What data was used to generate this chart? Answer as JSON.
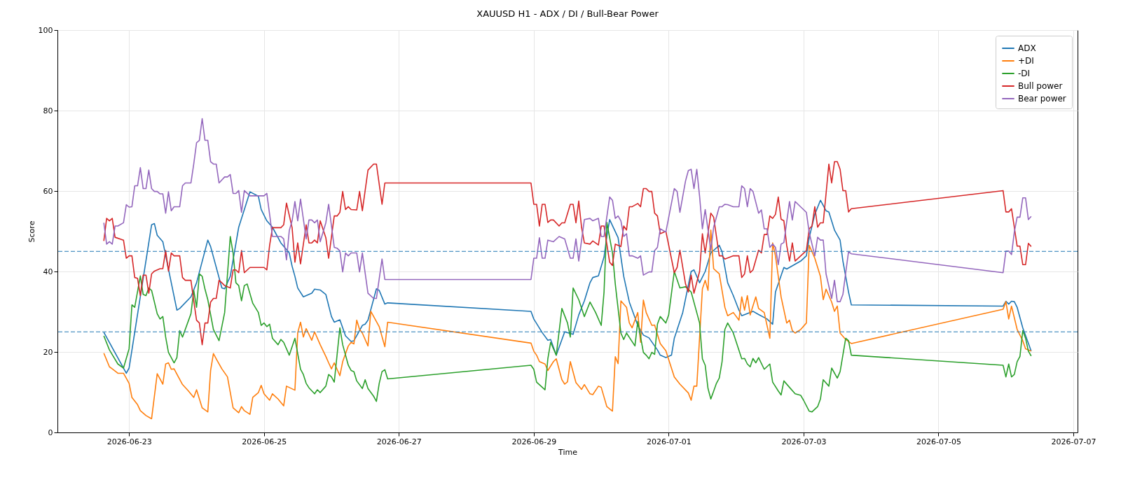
{
  "chart_data": {
    "type": "line",
    "title": "XAUUSD H1 - ADX / DI / Bull-Bear Power",
    "xlabel": "Time",
    "ylabel": "Score",
    "xlim": [
      "2026-06-21T22:30",
      "2026-07-07T01:30"
    ],
    "xticks": [
      "2026-06-23",
      "2026-06-25",
      "2026-06-27",
      "2026-06-29",
      "2026-07-01",
      "2026-07-03",
      "2026-07-05",
      "2026-07-07"
    ],
    "ylim": [
      0,
      100
    ],
    "yticks": [
      0,
      20,
      40,
      60,
      80,
      100
    ],
    "grid": true,
    "legend": "top right",
    "line_style": "solid",
    "ref_lines": [
      {
        "axis": "y",
        "value": 45,
        "color": "#1f77b4",
        "line_style": "dashed"
      },
      {
        "axis": "y",
        "value": 25,
        "color": "#1f77b4",
        "line_style": "dashed"
      }
    ],
    "series": [
      {
        "name": "ADX",
        "color": "#1f77b4",
        "x": [
          "2026-06-22T15:00",
          "2026-06-22T23:00",
          "2026-06-23T00:00",
          "2026-06-23T08:00",
          "2026-06-23T09:00",
          "2026-06-23T10:00",
          "2026-06-23T12:00",
          "2026-06-23T17:00",
          "2026-06-23T18:00",
          "2026-06-23T22:00",
          "2026-06-24T00:00",
          "2026-06-24T04:00",
          "2026-06-24T05:00",
          "2026-06-24T09:00",
          "2026-06-24T10:00",
          "2026-06-24T12:00",
          "2026-06-24T15:00",
          "2026-06-24T19:00",
          "2026-06-24T22:00",
          "2026-06-24T23:00",
          "2026-06-25T01:00",
          "2026-06-25T03:00",
          "2026-06-25T06:00",
          "2026-06-25T09:00",
          "2026-06-25T10:00",
          "2026-06-25T11:00",
          "2026-06-25T12:00",
          "2026-06-25T14:00",
          "2026-06-25T17:00",
          "2026-06-25T18:00",
          "2026-06-25T20:00",
          "2026-06-25T22:00",
          "2026-06-26T00:00",
          "2026-06-26T01:00",
          "2026-06-26T03:00",
          "2026-06-26T05:00",
          "2026-06-26T07:00",
          "2026-06-26T08:00",
          "2026-06-26T11:00",
          "2026-06-26T12:00",
          "2026-06-26T13:00",
          "2026-06-26T16:00",
          "2026-06-26T17:00",
          "2026-06-26T19:00",
          "2026-06-26T20:00",
          "2026-06-28T23:00",
          "2026-06-29T00:00",
          "2026-06-29T03:00",
          "2026-06-29T05:00",
          "2026-06-29T06:00",
          "2026-06-29T08:00",
          "2026-06-29T11:00",
          "2026-06-29T14:00",
          "2026-06-29T16:00",
          "2026-06-29T18:00",
          "2026-06-29T20:00",
          "2026-06-29T21:00",
          "2026-06-29T23:00",
          "2026-06-30T01:00",
          "2026-06-30T02:00",
          "2026-06-30T03:00",
          "2026-06-30T06:00",
          "2026-06-30T08:00",
          "2026-06-30T10:00",
          "2026-06-30T13:00",
          "2026-06-30T15:00",
          "2026-06-30T17:00",
          "2026-06-30T20:00",
          "2026-06-30T21:00",
          "2026-06-30T23:00",
          "2026-07-01T01:00",
          "2026-07-01T02:00",
          "2026-07-01T05:00",
          "2026-07-01T08:00",
          "2026-07-01T09:00",
          "2026-07-01T11:00",
          "2026-07-01T13:00",
          "2026-07-01T15:00",
          "2026-07-01T18:00",
          "2026-07-01T19:00",
          "2026-07-01T21:00",
          "2026-07-01T23:00",
          "2026-07-02T01:00",
          "2026-07-02T02:00",
          "2026-07-02T06:00",
          "2026-07-02T08:00",
          "2026-07-02T11:00",
          "2026-07-02T13:00",
          "2026-07-02T14:00",
          "2026-07-02T17:00",
          "2026-07-02T18:00",
          "2026-07-02T23:00",
          "2026-07-03T01:00",
          "2026-07-03T02:00",
          "2026-07-03T04:00",
          "2026-07-03T06:00",
          "2026-07-03T08:00",
          "2026-07-03T09:00",
          "2026-07-03T11:00",
          "2026-07-03T13:00",
          "2026-07-03T14:00",
          "2026-07-03T16:00",
          "2026-07-03T17:00",
          "2026-07-05T23:00",
          "2026-07-06T00:00",
          "2026-07-06T01:00",
          "2026-07-06T02:00",
          "2026-07-06T03:00",
          "2026-07-06T04:00",
          "2026-07-06T06:00",
          "2026-07-06T09:00"
        ],
        "values": [
          24.9,
          14.7,
          16,
          51.6,
          51.9,
          49,
          47.4,
          30.4,
          30.8,
          33.7,
          37.2,
          47.8,
          46.2,
          35.9,
          35.7,
          38.8,
          51,
          59.8,
          58.7,
          55.4,
          52.6,
          51,
          47.1,
          44.6,
          41.3,
          38.8,
          35.9,
          33.7,
          34.6,
          35.6,
          35.4,
          34.3,
          28.8,
          27.4,
          28,
          24,
          22.6,
          22.8,
          26.6,
          26.9,
          27.9,
          35.7,
          35.3,
          31.9,
          32.2,
          30.1,
          28.2,
          24.8,
          22.9,
          23.1,
          19.2,
          25,
          24.4,
          29.2,
          32.7,
          37.2,
          38.5,
          38.9,
          43.6,
          48.7,
          52.9,
          48.4,
          38.8,
          32.4,
          26.6,
          24.2,
          23.5,
          20.5,
          19.2,
          18.6,
          19.2,
          23.4,
          29.8,
          40,
          40.4,
          37.2,
          40,
          44.6,
          46.5,
          44.9,
          37.2,
          34,
          30.4,
          29,
          30.1,
          29.3,
          28.2,
          26.9,
          34.9,
          41,
          40.6,
          42.6,
          43.9,
          48.4,
          54.2,
          57.7,
          55.1,
          54.8,
          50.3,
          47.8,
          42.6,
          34.9,
          31.7,
          31.4,
          32.6,
          31.9,
          32.6,
          32.5,
          31.1,
          26,
          20.2
        ]
      },
      {
        "name": "+DI",
        "color": "#ff7f0e",
        "x": [
          "2026-06-22T15:00",
          "2026-06-22T17:00",
          "2026-06-22T18:00",
          "2026-06-22T20:00",
          "2026-06-22T22:00",
          "2026-06-23T00:00",
          "2026-06-23T01:00",
          "2026-06-23T03:00",
          "2026-06-23T04:00",
          "2026-06-23T06:00",
          "2026-06-23T08:00",
          "2026-06-23T10:00",
          "2026-06-23T12:00",
          "2026-06-23T13:00",
          "2026-06-23T14:00",
          "2026-06-23T15:00",
          "2026-06-23T16:00",
          "2026-06-23T19:00",
          "2026-06-23T21:00",
          "2026-06-23T23:00",
          "2026-06-24T00:00",
          "2026-06-24T02:00",
          "2026-06-24T04:00",
          "2026-06-24T05:00",
          "2026-06-24T06:00",
          "2026-06-24T07:00",
          "2026-06-24T09:00",
          "2026-06-24T11:00",
          "2026-06-24T13:00",
          "2026-06-24T15:00",
          "2026-06-24T16:00",
          "2026-06-24T17:00",
          "2026-06-24T19:00",
          "2026-06-24T20:00",
          "2026-06-24T22:00",
          "2026-06-24T23:00",
          "2026-06-25T00:00",
          "2026-06-25T02:00",
          "2026-06-25T03:00",
          "2026-06-25T05:00",
          "2026-06-25T07:00",
          "2026-06-25T08:00",
          "2026-06-25T11:00",
          "2026-06-25T12:00",
          "2026-06-25T13:00",
          "2026-06-25T14:00",
          "2026-06-25T15:00",
          "2026-06-25T17:00",
          "2026-06-25T18:00",
          "2026-06-25T20:00",
          "2026-06-25T22:00",
          "2026-06-25T23:00",
          "2026-06-26T00:00",
          "2026-06-26T01:00",
          "2026-06-26T02:00",
          "2026-06-26T03:00",
          "2026-06-26T04:00",
          "2026-06-26T06:00",
          "2026-06-26T07:00",
          "2026-06-26T08:00",
          "2026-06-26T09:00",
          "2026-06-26T10:00",
          "2026-06-26T11:00",
          "2026-06-26T13:00",
          "2026-06-26T14:00",
          "2026-06-26T17:00",
          "2026-06-26T19:00",
          "2026-06-26T20:00",
          "2026-06-28T23:00",
          "2026-06-29T00:00",
          "2026-06-29T01:00",
          "2026-06-29T02:00",
          "2026-06-29T04:00",
          "2026-06-29T05:00",
          "2026-06-29T07:00",
          "2026-06-29T08:00",
          "2026-06-29T10:00",
          "2026-06-29T11:00",
          "2026-06-29T12:00",
          "2026-06-29T13:00",
          "2026-06-29T15:00",
          "2026-06-29T17:00",
          "2026-06-29T18:00",
          "2026-06-29T20:00",
          "2026-06-29T21:00",
          "2026-06-29T23:00",
          "2026-06-30T00:00",
          "2026-06-30T02:00",
          "2026-06-30T04:00",
          "2026-06-30T05:00",
          "2026-06-30T06:00",
          "2026-06-30T07:00",
          "2026-06-30T09:00",
          "2026-06-30T10:00",
          "2026-06-30T11:00",
          "2026-06-30T13:00",
          "2026-06-30T14:00",
          "2026-06-30T15:00",
          "2026-06-30T16:00",
          "2026-06-30T18:00",
          "2026-06-30T19:00",
          "2026-06-30T21:00",
          "2026-06-30T23:00",
          "2026-07-01T02:00",
          "2026-07-01T04:00",
          "2026-07-01T07:00",
          "2026-07-01T08:00",
          "2026-07-01T09:00",
          "2026-07-01T10:00",
          "2026-07-01T12:00",
          "2026-07-01T13:00",
          "2026-07-01T14:00",
          "2026-07-01T15:00",
          "2026-07-01T16:00",
          "2026-07-01T18:00",
          "2026-07-01T20:00",
          "2026-07-01T21:00",
          "2026-07-01T23:00",
          "2026-07-02T01:00",
          "2026-07-02T02:00",
          "2026-07-02T03:00",
          "2026-07-02T04:00",
          "2026-07-02T05:00",
          "2026-07-02T07:00",
          "2026-07-02T08:00",
          "2026-07-02T10:00",
          "2026-07-02T11:00",
          "2026-07-02T12:00",
          "2026-07-02T13:00",
          "2026-07-02T14:00",
          "2026-07-02T16:00",
          "2026-07-02T18:00",
          "2026-07-02T19:00",
          "2026-07-02T20:00",
          "2026-07-02T21:00",
          "2026-07-02T23:00",
          "2026-07-03T01:00",
          "2026-07-03T02:00",
          "2026-07-03T04:00",
          "2026-07-03T06:00",
          "2026-07-03T07:00",
          "2026-07-03T08:00",
          "2026-07-03T10:00",
          "2026-07-03T11:00",
          "2026-07-03T12:00",
          "2026-07-03T13:00",
          "2026-07-03T15:00",
          "2026-07-03T17:00",
          "2026-07-05T23:00",
          "2026-07-06T00:00",
          "2026-07-06T01:00",
          "2026-07-06T02:00",
          "2026-07-06T04:00",
          "2026-07-06T06:00",
          "2026-07-06T07:00",
          "2026-07-06T09:00"
        ],
        "values": [
          19.7,
          16.3,
          15.8,
          14.7,
          14.7,
          12.2,
          8.7,
          6.9,
          5.4,
          4.2,
          3.4,
          14.6,
          12,
          17,
          17.3,
          15.7,
          15.8,
          11.9,
          10.4,
          8.7,
          10.6,
          6.1,
          5.1,
          15.4,
          19.6,
          18.3,
          15.8,
          13.8,
          6.1,
          4.9,
          6.4,
          5.4,
          4.5,
          8.7,
          9.9,
          11.7,
          9.6,
          8,
          9.6,
          8.3,
          6.6,
          11.5,
          10.5,
          24.8,
          27.4,
          23.7,
          25.8,
          22.9,
          25,
          21.8,
          18.9,
          17.3,
          15.8,
          17.3,
          15.7,
          14.1,
          17.6,
          21.5,
          22.4,
          22,
          27.9,
          25.6,
          24.7,
          21.5,
          30.1,
          26.3,
          21.3,
          27.4,
          22.2,
          20.2,
          19.2,
          17.6,
          17,
          15.4,
          17.6,
          18.3,
          13.1,
          12,
          12.6,
          17.6,
          12.4,
          10.7,
          11.9,
          9.6,
          9.4,
          11.5,
          11.2,
          6.4,
          5.3,
          18.8,
          17.1,
          32.7,
          31.1,
          27.2,
          26,
          29.8,
          22.4,
          32.9,
          29.8,
          26.6,
          26.7,
          22.1,
          20.3,
          13.8,
          12,
          9.8,
          8,
          11.5,
          11.5,
          35.7,
          37.8,
          35.3,
          50.3,
          40.7,
          39.4,
          31.1,
          29,
          29.8,
          27.9,
          33.7,
          30.4,
          34,
          29.2,
          33.7,
          30.8,
          29.8,
          26.6,
          23.4,
          47.1,
          43.9,
          33.7,
          27.2,
          27.9,
          25.3,
          24.7,
          25.6,
          27.2,
          46.5,
          43.3,
          38.8,
          33,
          35.6,
          32.4,
          30.1,
          31.4,
          24.7,
          23.1,
          22.1,
          30.6,
          32.5,
          28.2,
          31.4,
          25.6,
          22.8,
          20.8,
          20.2
        ]
      },
      {
        "name": "-DI",
        "color": "#2ca02c",
        "x": [
          "2026-06-22T15:00",
          "2026-06-22T17:00",
          "2026-06-22T20:00",
          "2026-06-22T22:00",
          "2026-06-23T00:00",
          "2026-06-23T01:00",
          "2026-06-23T02:00",
          "2026-06-23T04:00",
          "2026-06-23T05:00",
          "2026-06-23T06:00",
          "2026-06-23T07:00",
          "2026-06-23T08:00",
          "2026-06-23T10:00",
          "2026-06-23T11:00",
          "2026-06-23T12:00",
          "2026-06-23T13:00",
          "2026-06-23T14:00",
          "2026-06-23T16:00",
          "2026-06-23T17:00",
          "2026-06-23T18:00",
          "2026-06-23T19:00",
          "2026-06-23T22:00",
          "2026-06-23T23:00",
          "2026-06-24T00:00",
          "2026-06-24T01:00",
          "2026-06-24T02:00",
          "2026-06-24T03:00",
          "2026-06-24T04:00",
          "2026-06-24T06:00",
          "2026-06-24T08:00",
          "2026-06-24T10:00",
          "2026-06-24T12:00",
          "2026-06-24T13:00",
          "2026-06-24T14:00",
          "2026-06-24T15:00",
          "2026-06-24T16:00",
          "2026-06-24T17:00",
          "2026-06-24T18:00",
          "2026-06-24T20:00",
          "2026-06-24T22:00",
          "2026-06-24T23:00",
          "2026-06-25T00:00",
          "2026-06-25T01:00",
          "2026-06-25T02:00",
          "2026-06-25T03:00",
          "2026-06-25T05:00",
          "2026-06-25T06:00",
          "2026-06-25T07:00",
          "2026-06-25T09:00",
          "2026-06-25T11:00",
          "2026-06-25T12:00",
          "2026-06-25T13:00",
          "2026-06-25T14:00",
          "2026-06-25T15:00",
          "2026-06-25T16:00",
          "2026-06-25T18:00",
          "2026-06-25T19:00",
          "2026-06-25T20:00",
          "2026-06-25T22:00",
          "2026-06-25T23:00",
          "2026-06-26T00:00",
          "2026-06-26T01:00",
          "2026-06-26T03:00",
          "2026-06-26T04:00",
          "2026-06-26T06:00",
          "2026-06-26T07:00",
          "2026-06-26T08:00",
          "2026-06-26T09:00",
          "2026-06-26T11:00",
          "2026-06-26T12:00",
          "2026-06-26T13:00",
          "2026-06-26T15:00",
          "2026-06-26T16:00",
          "2026-06-26T17:00",
          "2026-06-26T18:00",
          "2026-06-26T19:00",
          "2026-06-26T20:00",
          "2026-06-28T23:00",
          "2026-06-29T00:00",
          "2026-06-29T01:00",
          "2026-06-29T04:00",
          "2026-06-29T05:00",
          "2026-06-29T06:00",
          "2026-06-29T08:00",
          "2026-06-29T10:00",
          "2026-06-29T12:00",
          "2026-06-29T13:00",
          "2026-06-29T14:00",
          "2026-06-29T16:00",
          "2026-06-29T18:00",
          "2026-06-29T20:00",
          "2026-06-29T22:00",
          "2026-06-30T00:00",
          "2026-06-30T01:00",
          "2026-06-30T02:00",
          "2026-06-30T04:00",
          "2026-06-30T05:00",
          "2026-06-30T07:00",
          "2026-06-30T08:00",
          "2026-06-30T09:00",
          "2026-06-30T12:00",
          "2026-06-30T13:00",
          "2026-06-30T15:00",
          "2026-06-30T16:00",
          "2026-06-30T17:00",
          "2026-06-30T18:00",
          "2026-06-30T19:00",
          "2026-06-30T20:00",
          "2026-06-30T21:00",
          "2026-06-30T23:00",
          "2026-07-01T00:00",
          "2026-07-01T02:00",
          "2026-07-01T04:00",
          "2026-07-01T06:00",
          "2026-07-01T08:00",
          "2026-07-01T11:00",
          "2026-07-01T12:00",
          "2026-07-01T13:00",
          "2026-07-01T14:00",
          "2026-07-01T15:00",
          "2026-07-01T17:00",
          "2026-07-01T18:00",
          "2026-07-01T19:00",
          "2026-07-01T20:00",
          "2026-07-01T21:00",
          "2026-07-01T23:00",
          "2026-07-02T02:00",
          "2026-07-02T03:00",
          "2026-07-02T04:00",
          "2026-07-02T05:00",
          "2026-07-02T06:00",
          "2026-07-02T07:00",
          "2026-07-02T08:00",
          "2026-07-02T10:00",
          "2026-07-02T12:00",
          "2026-07-02T13:00",
          "2026-07-02T15:00",
          "2026-07-02T16:00",
          "2026-07-02T17:00",
          "2026-07-02T19:00",
          "2026-07-02T21:00",
          "2026-07-02T23:00",
          "2026-07-03T00:00",
          "2026-07-03T02:00",
          "2026-07-03T03:00",
          "2026-07-03T05:00",
          "2026-07-03T06:00",
          "2026-07-03T07:00",
          "2026-07-03T09:00",
          "2026-07-03T10:00",
          "2026-07-03T12:00",
          "2026-07-03T13:00",
          "2026-07-03T15:00",
          "2026-07-03T16:00",
          "2026-07-03T17:00",
          "2026-07-05T23:00",
          "2026-07-06T00:00",
          "2026-07-06T01:00",
          "2026-07-06T02:00",
          "2026-07-06T03:00",
          "2026-07-06T04:00",
          "2026-07-06T05:00",
          "2026-07-06T06:00",
          "2026-07-06T07:00",
          "2026-07-06T08:00",
          "2026-07-06T09:00"
        ],
        "values": [
          24,
          20.5,
          17,
          16,
          20.8,
          31.7,
          31.1,
          38.9,
          34.3,
          34,
          35.9,
          35.3,
          29.5,
          28.2,
          28.8,
          23.7,
          19.9,
          17.3,
          18.6,
          25.3,
          23.7,
          29.5,
          35.3,
          31.1,
          39.4,
          38.8,
          35.6,
          33,
          25.6,
          22.8,
          29.8,
          48.7,
          44.6,
          37.2,
          36.5,
          32.7,
          36.5,
          36.9,
          32.1,
          29.8,
          26.6,
          27.2,
          26.3,
          26.9,
          23.4,
          21.8,
          23.1,
          22.4,
          19.2,
          23.4,
          19.6,
          15.7,
          14.4,
          12.2,
          11.1,
          9.6,
          10.6,
          9.9,
          11.5,
          14.4,
          13.8,
          12.5,
          26,
          21.8,
          16.7,
          15.4,
          15.1,
          12.8,
          10.9,
          13.1,
          10.9,
          9,
          7.7,
          12.2,
          15.1,
          15.6,
          13.3,
          16.7,
          15.7,
          12.5,
          10.6,
          18.3,
          22.4,
          19.2,
          30.8,
          27.2,
          23.7,
          35.9,
          33,
          28.8,
          32.4,
          29.8,
          26.6,
          34.9,
          52.2,
          44.6,
          36.9,
          24.7,
          23.1,
          24.7,
          21.5,
          27.6,
          19.9,
          19.2,
          18.3,
          19.9,
          19.4,
          26.9,
          28.8,
          27.2,
          29.2,
          40,
          35.9,
          36.2,
          34.9,
          27.2,
          18.3,
          16.7,
          10.9,
          8.3,
          12.2,
          13.5,
          17.6,
          25.6,
          27.2,
          24.7,
          18.3,
          18.4,
          17,
          16.3,
          18.4,
          17.3,
          18.6,
          15.7,
          17,
          12.5,
          10.3,
          9.3,
          12.8,
          11.2,
          9.6,
          9.2,
          8,
          5.3,
          5.1,
          6.4,
          8.3,
          13.1,
          11.5,
          16,
          13.5,
          15.1,
          23.4,
          22.8,
          19.2,
          16.7,
          13.8,
          17,
          13.8,
          14.4,
          17.6,
          18.9,
          25.3,
          23.4,
          20.2,
          19
        ]
      },
      {
        "name": "Bull power",
        "color": "#d62728",
        "x": [
          "2026-06-22T15:00",
          "2026-06-22T16:00",
          "2026-06-22T17:00",
          "2026-06-22T18:00",
          "2026-06-22T19:00",
          "2026-06-22T22:00",
          "2026-06-22T23:00",
          "2026-06-23T00:00",
          "2026-06-23T01:00",
          "2026-06-23T02:00",
          "2026-06-23T03:00",
          "2026-06-23T04:00",
          "2026-06-23T05:00",
          "2026-06-23T06:00",
          "2026-06-23T07:00",
          "2026-06-23T08:00",
          "2026-06-23T09:00",
          "2026-06-23T11:00",
          "2026-06-23T12:00",
          "2026-06-23T13:00",
          "2026-06-23T14:00",
          "2026-06-23T15:00",
          "2026-06-23T16:00",
          "2026-06-23T18:00",
          "2026-06-23T19:00",
          "2026-06-23T20:00",
          "2026-06-23T22:00",
          "2026-06-23T23:00",
          "2026-06-24T00:00",
          "2026-06-24T01:00",
          "2026-06-24T02:00",
          "2026-06-24T03:00",
          "2026-06-24T04:00",
          "2026-06-24T05:00",
          "2026-06-24T06:00",
          "2026-06-24T07:00",
          "2026-06-24T08:00",
          "2026-06-24T09:00",
          "2026-06-24T10:00",
          "2026-06-24T12:00",
          "2026-06-24T13:00",
          "2026-06-24T14:00",
          "2026-06-24T15:00",
          "2026-06-24T16:00",
          "2026-06-24T17:00",
          "2026-06-24T19:00",
          "2026-06-25T00:00",
          "2026-06-25T01:00",
          "2026-06-25T02:00",
          "2026-06-25T03:00",
          "2026-06-25T06:00",
          "2026-06-25T07:00",
          "2026-06-25T08:00",
          "2026-06-25T10:00",
          "2026-06-25T11:00",
          "2026-06-25T12:00",
          "2026-06-25T13:00",
          "2026-06-25T15:00",
          "2026-06-25T16:00",
          "2026-06-25T17:00",
          "2026-06-25T18:00",
          "2026-06-25T19:00",
          "2026-06-25T20:00",
          "2026-06-25T22:00",
          "2026-06-25T23:00",
          "2026-06-26T01:00",
          "2026-06-26T02:00",
          "2026-06-26T03:00",
          "2026-06-26T04:00",
          "2026-06-26T05:00",
          "2026-06-26T06:00",
          "2026-06-26T07:00",
          "2026-06-26T09:00",
          "2026-06-26T10:00",
          "2026-06-26T11:00",
          "2026-06-26T13:00",
          "2026-06-26T15:00",
          "2026-06-26T16:00",
          "2026-06-26T18:00",
          "2026-06-26T19:00",
          "2026-06-26T20:00",
          "2026-06-28T23:00",
          "2026-06-29T00:00",
          "2026-06-29T01:00",
          "2026-06-29T02:00",
          "2026-06-29T03:00",
          "2026-06-29T04:00",
          "2026-06-29T05:00",
          "2026-06-29T06:00",
          "2026-06-29T07:00",
          "2026-06-29T09:00",
          "2026-06-29T10:00",
          "2026-06-29T11:00",
          "2026-06-29T13:00",
          "2026-06-29T14:00",
          "2026-06-29T15:00",
          "2026-06-29T16:00",
          "2026-06-29T17:00",
          "2026-06-29T18:00",
          "2026-06-29T20:00",
          "2026-06-29T21:00",
          "2026-06-29T23:00",
          "2026-06-30T00:00",
          "2026-06-30T01:00",
          "2026-06-30T02:00",
          "2026-06-30T03:00",
          "2026-06-30T04:00",
          "2026-06-30T05:00",
          "2026-06-30T07:00",
          "2026-06-30T08:00",
          "2026-06-30T09:00",
          "2026-06-30T10:00",
          "2026-06-30T11:00",
          "2026-06-30T13:00",
          "2026-06-30T14:00",
          "2026-06-30T15:00",
          "2026-06-30T16:00",
          "2026-06-30T17:00",
          "2026-06-30T18:00",
          "2026-06-30T19:00",
          "2026-06-30T20:00",
          "2026-06-30T21:00",
          "2026-06-30T23:00",
          "2026-07-01T02:00",
          "2026-07-01T03:00",
          "2026-07-01T04:00",
          "2026-07-01T06:00",
          "2026-07-01T07:00",
          "2026-07-01T08:00",
          "2026-07-01T09:00",
          "2026-07-01T11:00",
          "2026-07-01T12:00",
          "2026-07-01T13:00",
          "2026-07-01T15:00",
          "2026-07-01T16:00",
          "2026-07-01T18:00",
          "2026-07-01T19:00",
          "2026-07-01T20:00",
          "2026-07-01T23:00",
          "2026-07-02T01:00",
          "2026-07-02T02:00",
          "2026-07-02T03:00",
          "2026-07-02T04:00",
          "2026-07-02T05:00",
          "2026-07-02T06:00",
          "2026-07-02T08:00",
          "2026-07-02T09:00",
          "2026-07-02T10:00",
          "2026-07-02T11:00",
          "2026-07-02T12:00",
          "2026-07-02T13:00",
          "2026-07-02T14:00",
          "2026-07-02T15:00",
          "2026-07-02T16:00",
          "2026-07-02T17:00",
          "2026-07-02T18:00",
          "2026-07-02T19:00",
          "2026-07-02T20:00",
          "2026-07-02T21:00",
          "2026-07-02T23:00",
          "2026-07-03T01:00",
          "2026-07-03T02:00",
          "2026-07-03T03:00",
          "2026-07-03T04:00",
          "2026-07-03T05:00",
          "2026-07-03T06:00",
          "2026-07-03T07:00",
          "2026-07-03T08:00",
          "2026-07-03T09:00",
          "2026-07-03T10:00",
          "2026-07-03T11:00",
          "2026-07-03T12:00",
          "2026-07-03T13:00",
          "2026-07-03T14:00",
          "2026-07-03T15:00",
          "2026-07-03T16:00",
          "2026-07-03T17:00",
          "2026-07-05T23:00",
          "2026-07-06T00:00",
          "2026-07-06T01:00",
          "2026-07-06T02:00",
          "2026-07-06T03:00",
          "2026-07-06T04:00",
          "2026-07-06T05:00",
          "2026-07-06T06:00",
          "2026-07-06T07:00",
          "2026-07-06T08:00",
          "2026-07-06T09:00"
        ],
        "values": [
          47.6,
          53.2,
          52.6,
          53.2,
          48.5,
          47.8,
          43.3,
          43.9,
          43.9,
          38.5,
          38.3,
          34,
          39.1,
          39.1,
          34.6,
          39.4,
          40.1,
          40.7,
          40.7,
          45.2,
          40.1,
          44.6,
          43.9,
          43.9,
          38.5,
          37.8,
          37.8,
          32.7,
          27.9,
          27.2,
          21.8,
          27.2,
          27.2,
          32.4,
          33.3,
          33.3,
          37.8,
          37.2,
          36.5,
          35.9,
          40.4,
          40.4,
          39.7,
          45.2,
          39.7,
          41,
          41,
          40.4,
          46.5,
          50.9,
          50.9,
          51.6,
          57,
          50.9,
          42.3,
          47.1,
          41.9,
          51.6,
          47.1,
          47.1,
          47.8,
          47.1,
          52.6,
          48.4,
          43.3,
          53.8,
          53.8,
          54.7,
          59.9,
          55.4,
          56.1,
          55.4,
          55.3,
          59.9,
          55.1,
          65.2,
          66.7,
          66.7,
          56.7,
          62,
          62,
          62,
          56.7,
          56.7,
          51.3,
          56.7,
          56.7,
          52.2,
          52.8,
          52.8,
          51.3,
          52.1,
          52.1,
          56.7,
          56.7,
          52.1,
          57.5,
          51,
          47.1,
          46.8,
          47.6,
          46.6,
          51.3,
          51.3,
          46.8,
          42.3,
          41.5,
          46.8,
          46.2,
          51.3,
          50.3,
          56.1,
          56.1,
          56.9,
          56.1,
          60.6,
          60.6,
          59.9,
          59.9,
          54.5,
          53.8,
          49.4,
          50,
          39.7,
          41,
          45.3,
          36.9,
          34.9,
          39.1,
          34.6,
          40,
          49.4,
          44.6,
          54.5,
          53.5,
          43.9,
          43.9,
          43.1,
          43.9,
          43.9,
          38.5,
          39.4,
          43.9,
          39.7,
          40.4,
          45.3,
          44.6,
          49.2,
          49.2,
          53.8,
          53.2,
          54.2,
          58.5,
          53,
          52.6,
          46.5,
          42.6,
          47.1,
          42.6,
          43.9,
          45.2,
          50.6,
          51.3,
          56.1,
          51,
          52.1,
          52.1,
          59.3,
          66.7,
          62,
          67.3,
          67.3,
          65.4,
          60.1,
          60.1,
          54.8,
          55.6,
          60.1,
          54.8,
          54.8,
          55.6,
          51,
          46.3,
          46.3,
          41.7,
          41.7,
          47,
          46.2
        ]
      },
      {
        "name": "Bear power",
        "color": "#9467bd",
        "x": [
          "2026-06-22T15:00",
          "2026-06-22T16:00",
          "2026-06-22T17:00",
          "2026-06-22T18:00",
          "2026-06-22T19:00",
          "2026-06-22T20:00",
          "2026-06-22T22:00",
          "2026-06-22T23:00",
          "2026-06-23T00:00",
          "2026-06-23T01:00",
          "2026-06-23T02:00",
          "2026-06-23T03:00",
          "2026-06-23T04:00",
          "2026-06-23T05:00",
          "2026-06-23T06:00",
          "2026-06-23T07:00",
          "2026-06-23T08:00",
          "2026-06-23T09:00",
          "2026-06-23T10:00",
          "2026-06-23T11:00",
          "2026-06-23T12:00",
          "2026-06-23T13:00",
          "2026-06-23T14:00",
          "2026-06-23T15:00",
          "2026-06-23T16:00",
          "2026-06-23T18:00",
          "2026-06-23T19:00",
          "2026-06-23T20:00",
          "2026-06-23T22:00",
          "2026-06-23T23:00",
          "2026-06-24T00:00",
          "2026-06-24T01:00",
          "2026-06-24T02:00",
          "2026-06-24T03:00",
          "2026-06-24T04:00",
          "2026-06-24T05:00",
          "2026-06-24T06:00",
          "2026-06-24T07:00",
          "2026-06-24T08:00",
          "2026-06-24T10:00",
          "2026-06-24T11:00",
          "2026-06-24T12:00",
          "2026-06-24T13:00",
          "2026-06-24T14:00",
          "2026-06-24T15:00",
          "2026-06-24T16:00",
          "2026-06-24T17:00",
          "2026-06-24T19:00",
          "2026-06-25T00:00",
          "2026-06-25T01:00",
          "2026-06-25T02:00",
          "2026-06-25T03:00",
          "2026-06-25T06:00",
          "2026-06-25T07:00",
          "2026-06-25T08:00",
          "2026-06-25T09:00",
          "2026-06-25T10:00",
          "2026-06-25T11:00",
          "2026-06-25T12:00",
          "2026-06-25T13:00",
          "2026-06-25T15:00",
          "2026-06-25T16:00",
          "2026-06-25T17:00",
          "2026-06-25T18:00",
          "2026-06-25T19:00",
          "2026-06-25T20:00",
          "2026-06-25T22:00",
          "2026-06-25T23:00",
          "2026-06-26T01:00",
          "2026-06-26T02:00",
          "2026-06-26T03:00",
          "2026-06-26T04:00",
          "2026-06-26T05:00",
          "2026-06-26T06:00",
          "2026-06-26T07:00",
          "2026-06-26T09:00",
          "2026-06-26T10:00",
          "2026-06-26T11:00",
          "2026-06-26T13:00",
          "2026-06-26T15:00",
          "2026-06-26T16:00",
          "2026-06-26T18:00",
          "2026-06-26T19:00",
          "2026-06-26T20:00",
          "2026-06-28T23:00",
          "2026-06-29T00:00",
          "2026-06-29T01:00",
          "2026-06-29T02:00",
          "2026-06-29T03:00",
          "2026-06-29T04:00",
          "2026-06-29T05:00",
          "2026-06-29T07:00",
          "2026-06-29T09:00",
          "2026-06-29T10:00",
          "2026-06-29T11:00",
          "2026-06-29T13:00",
          "2026-06-29T14:00",
          "2026-06-29T15:00",
          "2026-06-29T16:00",
          "2026-06-29T18:00",
          "2026-06-29T20:00",
          "2026-06-29T21:00",
          "2026-06-29T23:00",
          "2026-06-30T00:00",
          "2026-06-30T01:00",
          "2026-06-30T03:00",
          "2026-06-30T04:00",
          "2026-06-30T05:00",
          "2026-06-30T06:00",
          "2026-06-30T07:00",
          "2026-06-30T08:00",
          "2026-06-30T09:00",
          "2026-06-30T10:00",
          "2026-06-30T11:00",
          "2026-06-30T13:00",
          "2026-06-30T14:00",
          "2026-06-30T15:00",
          "2026-06-30T17:00",
          "2026-06-30T18:00",
          "2026-06-30T19:00",
          "2026-06-30T20:00",
          "2026-06-30T21:00",
          "2026-06-30T23:00",
          "2026-07-01T02:00",
          "2026-07-01T03:00",
          "2026-07-01T04:00",
          "2026-07-01T06:00",
          "2026-07-01T07:00",
          "2026-07-01T08:00",
          "2026-07-01T09:00",
          "2026-07-01T10:00",
          "2026-07-01T11:00",
          "2026-07-01T12:00",
          "2026-07-01T13:00",
          "2026-07-01T15:00",
          "2026-07-01T16:00",
          "2026-07-01T18:00",
          "2026-07-01T19:00",
          "2026-07-01T20:00",
          "2026-07-01T21:00",
          "2026-07-01T23:00",
          "2026-07-02T01:00",
          "2026-07-02T02:00",
          "2026-07-02T03:00",
          "2026-07-02T04:00",
          "2026-07-02T05:00",
          "2026-07-02T06:00",
          "2026-07-02T08:00",
          "2026-07-02T09:00",
          "2026-07-02T10:00",
          "2026-07-02T11:00",
          "2026-07-02T12:00",
          "2026-07-02T13:00",
          "2026-07-02T14:00",
          "2026-07-02T15:00",
          "2026-07-02T16:00",
          "2026-07-02T17:00",
          "2026-07-02T19:00",
          "2026-07-02T20:00",
          "2026-07-02T21:00",
          "2026-07-03T01:00",
          "2026-07-03T02:00",
          "2026-07-03T04:00",
          "2026-07-03T05:00",
          "2026-07-03T06:00",
          "2026-07-03T07:00",
          "2026-07-03T08:00",
          "2026-07-03T10:00",
          "2026-07-03T11:00",
          "2026-07-03T12:00",
          "2026-07-03T13:00",
          "2026-07-03T14:00",
          "2026-07-03T15:00",
          "2026-07-03T16:00",
          "2026-07-03T17:00",
          "2026-07-05T23:00",
          "2026-07-06T00:00",
          "2026-07-06T01:00",
          "2026-07-06T02:00",
          "2026-07-06T03:00",
          "2026-07-06T04:00",
          "2026-07-06T05:00",
          "2026-07-06T06:00",
          "2026-07-06T07:00",
          "2026-07-06T08:00",
          "2026-07-06T09:00"
        ],
        "values": [
          52.1,
          46.8,
          47.4,
          46.8,
          51.3,
          51.3,
          52.1,
          56.6,
          56,
          56.1,
          61.3,
          61.3,
          65.8,
          60.6,
          60.6,
          65.2,
          60.6,
          59.9,
          59.9,
          59.3,
          59.3,
          54.5,
          59.8,
          55.1,
          56.1,
          56.1,
          61.3,
          62,
          62,
          66.7,
          72,
          72.6,
          78,
          72.6,
          72.6,
          67.3,
          66.7,
          66.7,
          62,
          63.5,
          63.5,
          64.1,
          59.4,
          59.4,
          60.1,
          54.7,
          60.1,
          58.8,
          58.8,
          59.4,
          54.2,
          48.7,
          48.7,
          48.1,
          42.9,
          50.2,
          52.6,
          57.4,
          52.6,
          58,
          48.1,
          52.8,
          52.8,
          52.1,
          52.8,
          47.4,
          52.1,
          56.7,
          46,
          45.8,
          45.1,
          39.9,
          44.6,
          43.9,
          44.6,
          44.6,
          39.9,
          44.6,
          34.6,
          33.3,
          33.3,
          43.1,
          38,
          38,
          38,
          43.3,
          43.3,
          48.4,
          43.3,
          43.3,
          47.8,
          47.4,
          48.7,
          48.4,
          48.1,
          43.3,
          43.3,
          48.1,
          42.6,
          52.9,
          53.2,
          52.6,
          53.2,
          48.7,
          48.7,
          58.5,
          57.7,
          53.2,
          53.8,
          52.6,
          48.7,
          49.4,
          43.9,
          43.9,
          43.3,
          43.9,
          39.1,
          39.9,
          39.9,
          45.2,
          46,
          50.6,
          49.8,
          60.6,
          59.9,
          54.7,
          62.5,
          65.1,
          65.4,
          60.6,
          65.4,
          58.7,
          50.6,
          55.4,
          45.3,
          51,
          56.1,
          56.1,
          56.7,
          56.6,
          56.1,
          56.1,
          61.3,
          60.6,
          56.1,
          60.6,
          59.9,
          54.5,
          55.3,
          50.6,
          50.6,
          46,
          46.8,
          46,
          41.7,
          46.8,
          47.2,
          57.4,
          52.8,
          57.4,
          54.7,
          49.7,
          43.9,
          48.5,
          47.8,
          47.8,
          39.4,
          33.3,
          37.8,
          32.5,
          32.5,
          34.3,
          39.7,
          44.9,
          44.4,
          39.7,
          45.1,
          45.1,
          44.2,
          49.8,
          53.5,
          53.5,
          58.3,
          58.3,
          52.9,
          53.7
        ]
      }
    ]
  }
}
